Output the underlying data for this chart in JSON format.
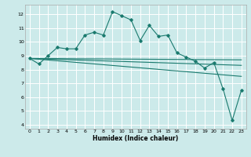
{
  "xlabel": "Humidex (Indice chaleur)",
  "bg_color": "#cceaea",
  "grid_color": "#ffffff",
  "line_color": "#1a7a6e",
  "xlim": [
    -0.5,
    23.5
  ],
  "ylim": [
    3.7,
    12.7
  ],
  "yticks": [
    4,
    5,
    6,
    7,
    8,
    9,
    10,
    11,
    12
  ],
  "xticks": [
    0,
    1,
    2,
    3,
    4,
    5,
    6,
    7,
    8,
    9,
    10,
    11,
    12,
    13,
    14,
    15,
    16,
    17,
    18,
    19,
    20,
    21,
    22,
    23
  ],
  "series1_x": [
    0,
    1,
    2,
    3,
    4,
    5,
    6,
    7,
    8,
    9,
    10,
    11,
    12,
    13,
    14,
    15,
    16,
    17,
    18,
    19,
    20,
    21,
    22,
    23
  ],
  "series1_y": [
    8.8,
    8.4,
    9.0,
    9.6,
    9.5,
    9.5,
    10.5,
    10.7,
    10.5,
    12.2,
    11.9,
    11.6,
    10.1,
    11.2,
    10.4,
    10.5,
    9.2,
    8.9,
    8.6,
    8.1,
    8.5,
    6.6,
    4.3,
    6.5
  ],
  "series2_x": [
    0,
    23
  ],
  "series2_y": [
    8.8,
    8.7
  ],
  "series3_x": [
    0,
    23
  ],
  "series3_y": [
    8.8,
    8.3
  ],
  "series4_x": [
    0,
    23
  ],
  "series4_y": [
    8.8,
    7.5
  ]
}
